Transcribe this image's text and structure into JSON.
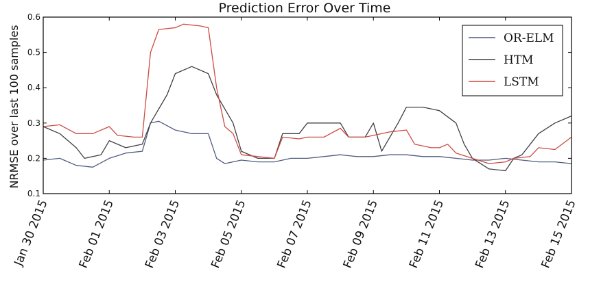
{
  "chart_data": {
    "type": "line",
    "title": "Prediction Error Over Time",
    "xlabel": "",
    "ylabel": "NRMSE over last 100 samples",
    "x_range": [
      "2015-01-30",
      "2015-02-15"
    ],
    "x_tick_labels": [
      "Jan 30 2015",
      "Feb 01 2015",
      "Feb 03 2015",
      "Feb 05 2015",
      "Feb 07 2015",
      "Feb 09 2015",
      "Feb 11 2015",
      "Feb 13 2015",
      "Feb 15 2015"
    ],
    "ylim": [
      0.1,
      0.6
    ],
    "y_ticks": [
      "0.1",
      "0.2",
      "0.3",
      "0.4",
      "0.5",
      "0.6"
    ],
    "grid": false,
    "legend_position": "top-right",
    "series": [
      {
        "name": "OR-ELM",
        "color": "#4f5a7e",
        "points": [
          [
            "2015-01-30",
            0.195
          ],
          [
            "2015-01-30T12:00",
            0.2
          ],
          [
            "2015-01-31",
            0.18
          ],
          [
            "2015-01-31T12:00",
            0.175
          ],
          [
            "2015-02-01",
            0.2
          ],
          [
            "2015-02-01T12:00",
            0.215
          ],
          [
            "2015-02-02",
            0.22
          ],
          [
            "2015-02-02T06:00",
            0.3
          ],
          [
            "2015-02-02T12:00",
            0.305
          ],
          [
            "2015-02-03",
            0.28
          ],
          [
            "2015-02-03T12:00",
            0.27
          ],
          [
            "2015-02-04",
            0.27
          ],
          [
            "2015-02-04T06:00",
            0.2
          ],
          [
            "2015-02-04T12:00",
            0.185
          ],
          [
            "2015-02-05",
            0.195
          ],
          [
            "2015-02-05T12:00",
            0.19
          ],
          [
            "2015-02-06",
            0.19
          ],
          [
            "2015-02-06T12:00",
            0.2
          ],
          [
            "2015-02-07",
            0.2
          ],
          [
            "2015-02-07T12:00",
            0.205
          ],
          [
            "2015-02-08",
            0.21
          ],
          [
            "2015-02-08T12:00",
            0.205
          ],
          [
            "2015-02-09",
            0.205
          ],
          [
            "2015-02-09T12:00",
            0.21
          ],
          [
            "2015-02-10",
            0.21
          ],
          [
            "2015-02-10T12:00",
            0.205
          ],
          [
            "2015-02-11",
            0.205
          ],
          [
            "2015-02-11T12:00",
            0.2
          ],
          [
            "2015-02-12",
            0.195
          ],
          [
            "2015-02-12T12:00",
            0.195
          ],
          [
            "2015-02-13",
            0.2
          ],
          [
            "2015-02-13T12:00",
            0.195
          ],
          [
            "2015-02-14",
            0.19
          ],
          [
            "2015-02-14T12:00",
            0.19
          ],
          [
            "2015-02-15",
            0.185
          ]
        ]
      },
      {
        "name": "HTM",
        "color": "#3e3e44",
        "points": [
          [
            "2015-01-30",
            0.29
          ],
          [
            "2015-01-30T12:00",
            0.27
          ],
          [
            "2015-01-31",
            0.23
          ],
          [
            "2015-01-31T06:00",
            0.2
          ],
          [
            "2015-01-31T18:00",
            0.21
          ],
          [
            "2015-02-01",
            0.25
          ],
          [
            "2015-02-01T12:00",
            0.23
          ],
          [
            "2015-02-02",
            0.24
          ],
          [
            "2015-02-02T06:00",
            0.3
          ],
          [
            "2015-02-02T18:00",
            0.38
          ],
          [
            "2015-02-03",
            0.44
          ],
          [
            "2015-02-03T12:00",
            0.46
          ],
          [
            "2015-02-04",
            0.44
          ],
          [
            "2015-02-04T06:00",
            0.38
          ],
          [
            "2015-02-04T12:00",
            0.34
          ],
          [
            "2015-02-04T18:00",
            0.3
          ],
          [
            "2015-02-05",
            0.22
          ],
          [
            "2015-02-05T12:00",
            0.2
          ],
          [
            "2015-02-06",
            0.2
          ],
          [
            "2015-02-06T06:00",
            0.27
          ],
          [
            "2015-02-06T18:00",
            0.27
          ],
          [
            "2015-02-07",
            0.3
          ],
          [
            "2015-02-07T12:00",
            0.3
          ],
          [
            "2015-02-08",
            0.3
          ],
          [
            "2015-02-08T06:00",
            0.26
          ],
          [
            "2015-02-08T18:00",
            0.26
          ],
          [
            "2015-02-09",
            0.3
          ],
          [
            "2015-02-09T06:00",
            0.22
          ],
          [
            "2015-02-09T18:00",
            0.3
          ],
          [
            "2015-02-10",
            0.345
          ],
          [
            "2015-02-10T12:00",
            0.345
          ],
          [
            "2015-02-11",
            0.335
          ],
          [
            "2015-02-11T12:00",
            0.3
          ],
          [
            "2015-02-11T18:00",
            0.24
          ],
          [
            "2015-02-12",
            0.2
          ],
          [
            "2015-02-12T12:00",
            0.17
          ],
          [
            "2015-02-13",
            0.165
          ],
          [
            "2015-02-13T06:00",
            0.2
          ],
          [
            "2015-02-13T12:00",
            0.21
          ],
          [
            "2015-02-14",
            0.27
          ],
          [
            "2015-02-14T12:00",
            0.3
          ],
          [
            "2015-02-15",
            0.32
          ]
        ]
      },
      {
        "name": "LSTM",
        "color": "#cc4a41",
        "points": [
          [
            "2015-01-30",
            0.29
          ],
          [
            "2015-01-30T12:00",
            0.295
          ],
          [
            "2015-01-31",
            0.27
          ],
          [
            "2015-01-31T12:00",
            0.27
          ],
          [
            "2015-02-01",
            0.29
          ],
          [
            "2015-02-01T06:00",
            0.265
          ],
          [
            "2015-02-01T18:00",
            0.26
          ],
          [
            "2015-02-02",
            0.26
          ],
          [
            "2015-02-02T06:00",
            0.5
          ],
          [
            "2015-02-02T12:00",
            0.565
          ],
          [
            "2015-02-03",
            0.57
          ],
          [
            "2015-02-03T06:00",
            0.58
          ],
          [
            "2015-02-03T18:00",
            0.575
          ],
          [
            "2015-02-04",
            0.57
          ],
          [
            "2015-02-04T06:00",
            0.4
          ],
          [
            "2015-02-04T12:00",
            0.29
          ],
          [
            "2015-02-04T18:00",
            0.27
          ],
          [
            "2015-02-05",
            0.21
          ],
          [
            "2015-02-05T12:00",
            0.205
          ],
          [
            "2015-02-06",
            0.2
          ],
          [
            "2015-02-06T06:00",
            0.26
          ],
          [
            "2015-02-06T18:00",
            0.255
          ],
          [
            "2015-02-07",
            0.26
          ],
          [
            "2015-02-07T12:00",
            0.26
          ],
          [
            "2015-02-08",
            0.285
          ],
          [
            "2015-02-08T06:00",
            0.26
          ],
          [
            "2015-02-08T18:00",
            0.26
          ],
          [
            "2015-02-09",
            0.265
          ],
          [
            "2015-02-09T12:00",
            0.275
          ],
          [
            "2015-02-10",
            0.28
          ],
          [
            "2015-02-10T06:00",
            0.24
          ],
          [
            "2015-02-10T18:00",
            0.23
          ],
          [
            "2015-02-11",
            0.23
          ],
          [
            "2015-02-11T06:00",
            0.24
          ],
          [
            "2015-02-11T12:00",
            0.215
          ],
          [
            "2015-02-12",
            0.2
          ],
          [
            "2015-02-12T12:00",
            0.185
          ],
          [
            "2015-02-13",
            0.19
          ],
          [
            "2015-02-13T06:00",
            0.2
          ],
          [
            "2015-02-13T18:00",
            0.205
          ],
          [
            "2015-02-14",
            0.23
          ],
          [
            "2015-02-14T12:00",
            0.225
          ],
          [
            "2015-02-15",
            0.26
          ]
        ]
      }
    ]
  }
}
